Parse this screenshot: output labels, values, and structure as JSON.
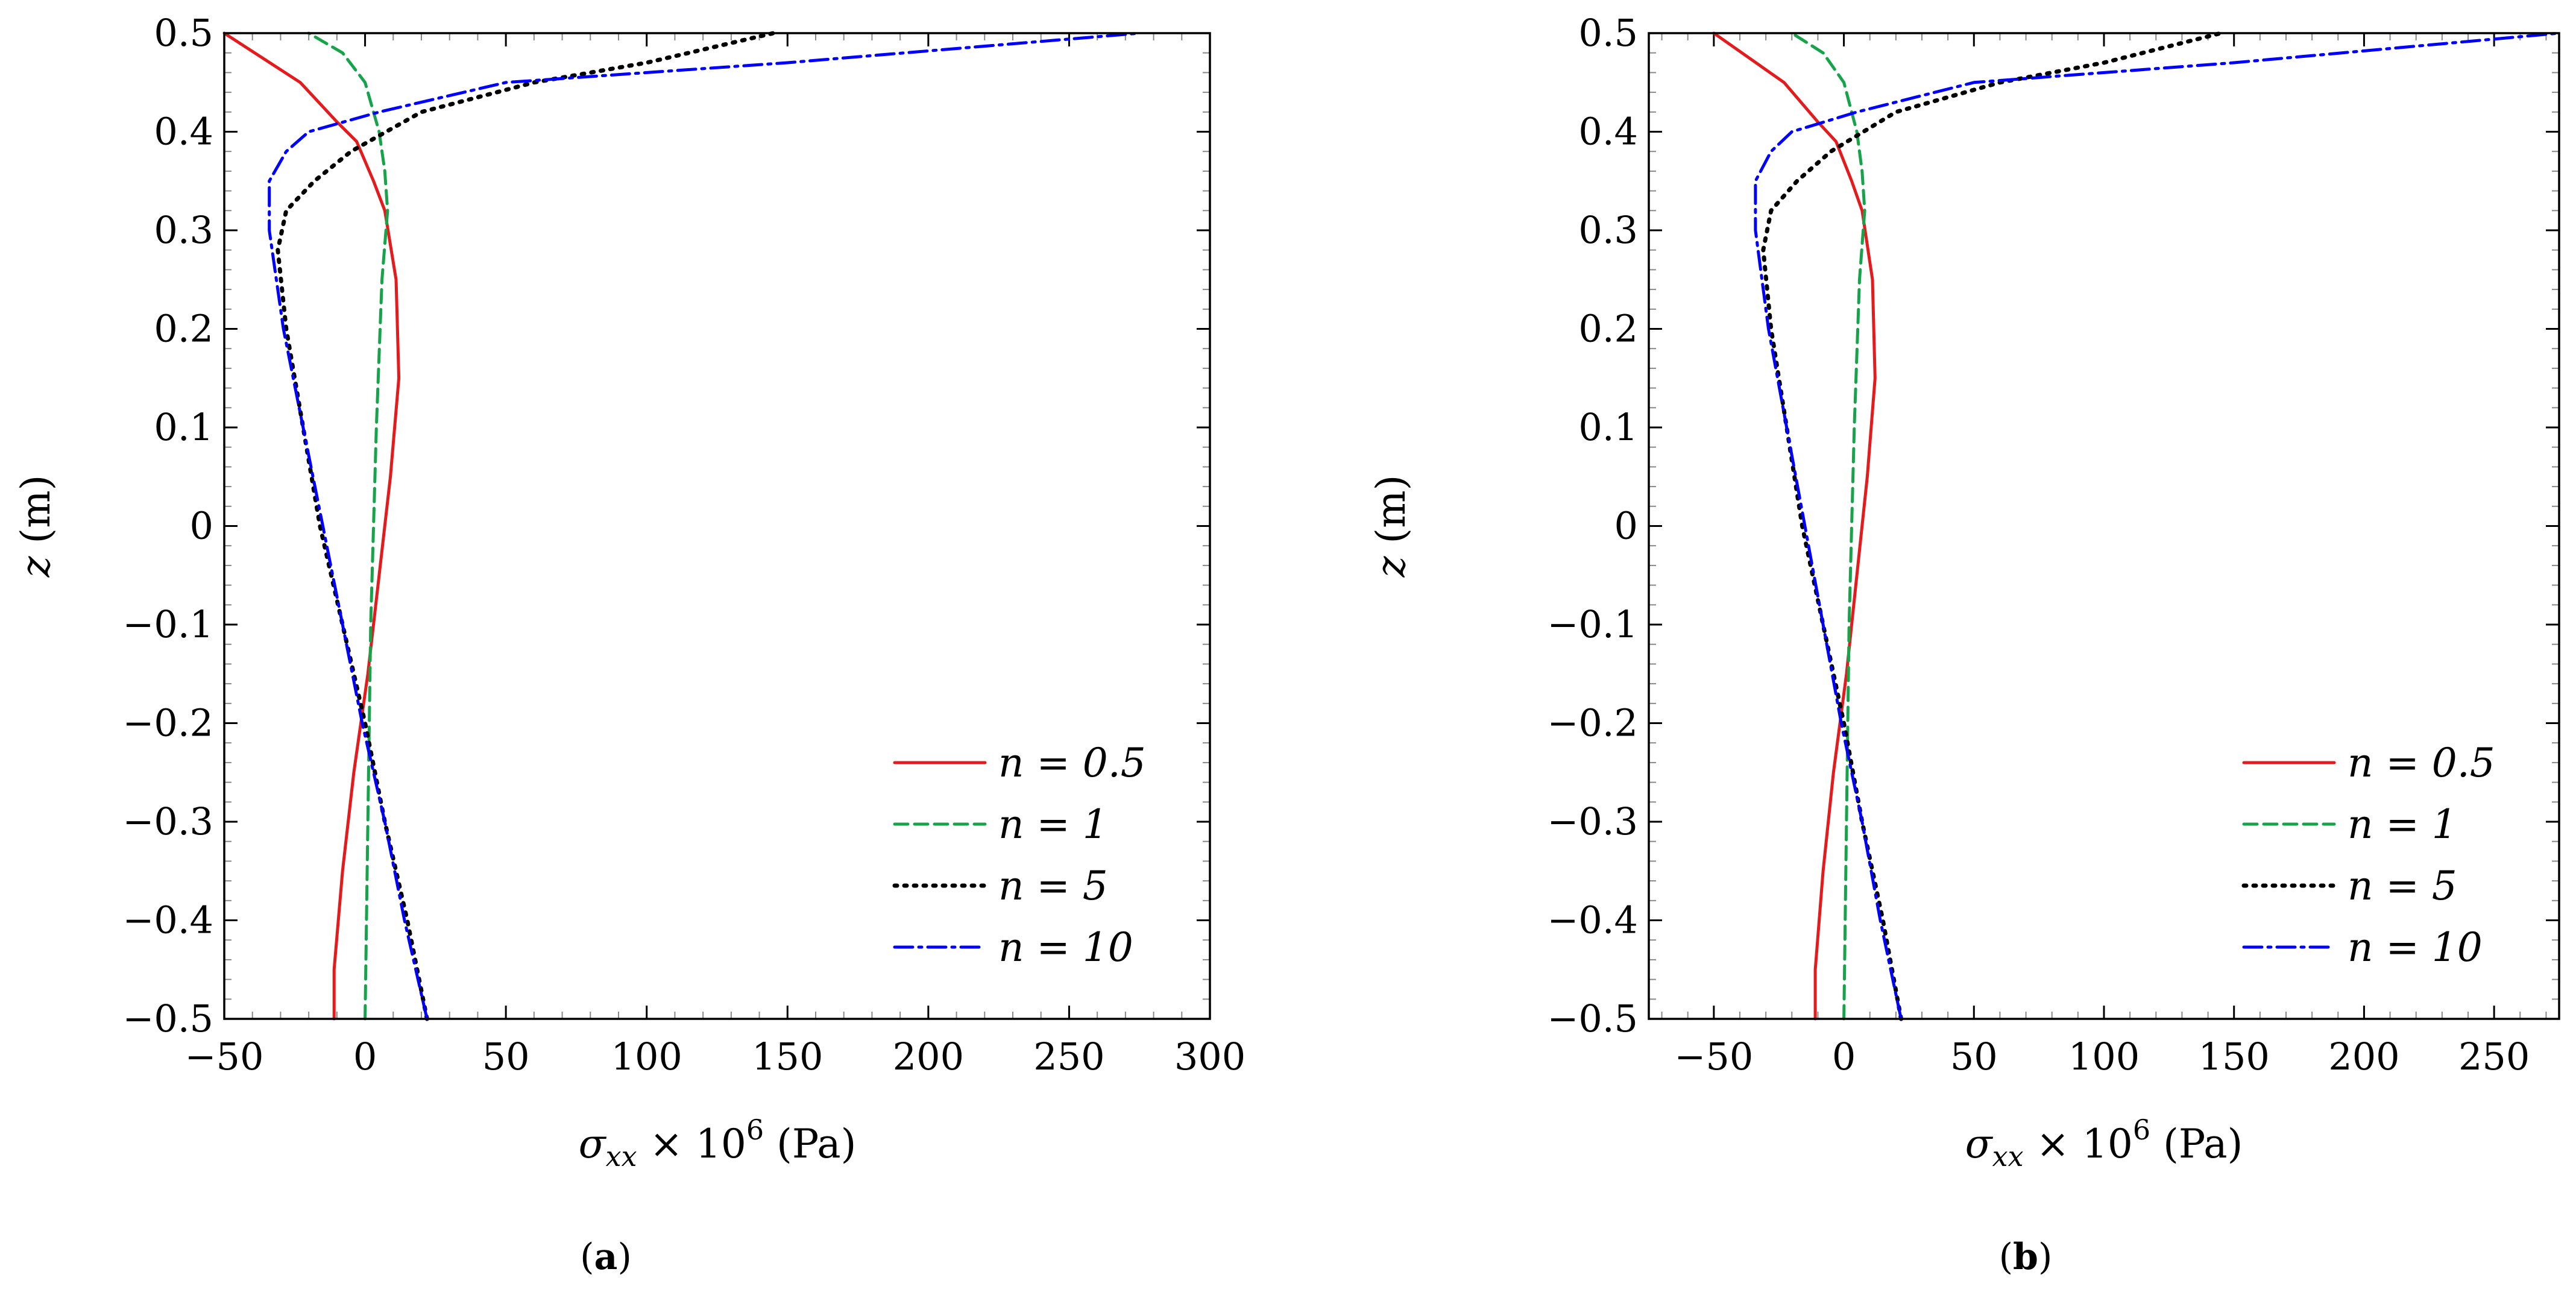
{
  "chart_data": [
    {
      "id": "a",
      "type": "line",
      "caption": "(a)",
      "xlabel": "σxx × 10^6 (Pa)",
      "ylabel": "z (m)",
      "xlim": [
        -50,
        300
      ],
      "ylim": [
        -0.5,
        0.5
      ],
      "xticks": [
        -50,
        0,
        50,
        100,
        150,
        200,
        250,
        300
      ],
      "xtick_labels": [
        "−50",
        "0",
        "50",
        "100",
        "150",
        "200",
        "250",
        "300"
      ],
      "yticks": [
        -0.5,
        -0.4,
        -0.3,
        -0.2,
        -0.1,
        0,
        0.1,
        0.2,
        0.3,
        0.4,
        0.5
      ],
      "ytick_labels": [
        "−0.5",
        "−0.4",
        "−0.3",
        "−0.2",
        "−0.1",
        "0",
        "0.1",
        "0.2",
        "0.3",
        "0.4",
        "0.5"
      ],
      "legend_position": "bottom-right",
      "series": [
        {
          "name": "n = 0.5",
          "color": "#e41a1c",
          "style": "solid",
          "points": [
            [
              -11,
              -0.5
            ],
            [
              -11,
              -0.45
            ],
            [
              -8,
              -0.35
            ],
            [
              -4,
              -0.25
            ],
            [
              1,
              -0.15
            ],
            [
              5,
              -0.05
            ],
            [
              9,
              0.05
            ],
            [
              12,
              0.15
            ],
            [
              11,
              0.25
            ],
            [
              7,
              0.32
            ],
            [
              3,
              0.35
            ],
            [
              -3,
              0.39
            ],
            [
              -10,
              0.41
            ],
            [
              -23,
              0.45
            ],
            [
              -50,
              0.5
            ]
          ]
        },
        {
          "name": "n = 1",
          "color": "#16a34a",
          "style": "dashed",
          "points": [
            [
              0,
              -0.5
            ],
            [
              1,
              -0.3
            ],
            [
              2,
              -0.1
            ],
            [
              4,
              0.1
            ],
            [
              6,
              0.25
            ],
            [
              8,
              0.32
            ],
            [
              7,
              0.36
            ],
            [
              5,
              0.4
            ],
            [
              0,
              0.45
            ],
            [
              -8,
              0.48
            ],
            [
              -20,
              0.5
            ]
          ]
        },
        {
          "name": "n = 5",
          "color": "#000000",
          "style": "dotted",
          "points": [
            [
              22,
              -0.5
            ],
            [
              15,
              -0.4
            ],
            [
              7,
              -0.3
            ],
            [
              0,
              -0.2
            ],
            [
              -8,
              -0.1
            ],
            [
              -16,
              0
            ],
            [
              -22,
              0.1
            ],
            [
              -28,
              0.2
            ],
            [
              -31,
              0.28
            ],
            [
              -28,
              0.32
            ],
            [
              -18,
              0.35
            ],
            [
              -5,
              0.38
            ],
            [
              20,
              0.42
            ],
            [
              60,
              0.45
            ],
            [
              100,
              0.47
            ],
            [
              145,
              0.5
            ]
          ]
        },
        {
          "name": "n = 10",
          "color": "#0000ff",
          "style": "dashdot",
          "points": [
            [
              22,
              -0.5
            ],
            [
              14,
              -0.4
            ],
            [
              7,
              -0.3
            ],
            [
              -1,
              -0.2
            ],
            [
              -8,
              -0.1
            ],
            [
              -15,
              0
            ],
            [
              -22,
              0.1
            ],
            [
              -29,
              0.2
            ],
            [
              -34,
              0.3
            ],
            [
              -34,
              0.35
            ],
            [
              -28,
              0.38
            ],
            [
              -20,
              0.4
            ],
            [
              5,
              0.42
            ],
            [
              50,
              0.45
            ],
            [
              150,
              0.47
            ],
            [
              275,
              0.5
            ]
          ]
        }
      ]
    },
    {
      "id": "b",
      "type": "line",
      "caption": "(b)",
      "xlabel": "σxx × 10^6 (Pa)",
      "ylabel": "z (m)",
      "xlim": [
        -75,
        275
      ],
      "ylim": [
        -0.5,
        0.5
      ],
      "xticks": [
        -50,
        0,
        50,
        100,
        150,
        200,
        250
      ],
      "xtick_labels": [
        "−50",
        "0",
        "50",
        "100",
        "150",
        "200",
        "250"
      ],
      "yticks": [
        -0.5,
        -0.4,
        -0.3,
        -0.2,
        -0.1,
        0,
        0.1,
        0.2,
        0.3,
        0.4,
        0.5
      ],
      "ytick_labels": [
        "−0.5",
        "−0.4",
        "−0.3",
        "−0.2",
        "−0.1",
        "0",
        "0.1",
        "0.2",
        "0.3",
        "0.4",
        "0.5"
      ],
      "legend_position": "bottom-right",
      "series": [
        {
          "name": "n = 0.5",
          "color": "#e41a1c",
          "style": "solid",
          "points": [
            [
              -11,
              -0.5
            ],
            [
              -11,
              -0.45
            ],
            [
              -8,
              -0.35
            ],
            [
              -4,
              -0.25
            ],
            [
              1,
              -0.15
            ],
            [
              5,
              -0.05
            ],
            [
              9,
              0.05
            ],
            [
              12,
              0.15
            ],
            [
              11,
              0.25
            ],
            [
              7,
              0.32
            ],
            [
              3,
              0.35
            ],
            [
              -3,
              0.39
            ],
            [
              -10,
              0.41
            ],
            [
              -23,
              0.45
            ],
            [
              -50,
              0.5
            ]
          ]
        },
        {
          "name": "n = 1",
          "color": "#16a34a",
          "style": "dashed",
          "points": [
            [
              0,
              -0.5
            ],
            [
              1,
              -0.3
            ],
            [
              2,
              -0.1
            ],
            [
              4,
              0.1
            ],
            [
              6,
              0.25
            ],
            [
              8,
              0.32
            ],
            [
              7,
              0.36
            ],
            [
              5,
              0.4
            ],
            [
              0,
              0.45
            ],
            [
              -8,
              0.48
            ],
            [
              -20,
              0.5
            ]
          ]
        },
        {
          "name": "n = 5",
          "color": "#000000",
          "style": "dotted",
          "points": [
            [
              22,
              -0.5
            ],
            [
              15,
              -0.4
            ],
            [
              7,
              -0.3
            ],
            [
              0,
              -0.2
            ],
            [
              -8,
              -0.1
            ],
            [
              -16,
              0
            ],
            [
              -22,
              0.1
            ],
            [
              -28,
              0.2
            ],
            [
              -31,
              0.28
            ],
            [
              -28,
              0.32
            ],
            [
              -18,
              0.35
            ],
            [
              -5,
              0.38
            ],
            [
              20,
              0.42
            ],
            [
              60,
              0.45
            ],
            [
              100,
              0.47
            ],
            [
              145,
              0.5
            ]
          ]
        },
        {
          "name": "n = 10",
          "color": "#0000ff",
          "style": "dashdot",
          "points": [
            [
              22,
              -0.5
            ],
            [
              14,
              -0.4
            ],
            [
              7,
              -0.3
            ],
            [
              -1,
              -0.2
            ],
            [
              -8,
              -0.1
            ],
            [
              -15,
              0
            ],
            [
              -22,
              0.1
            ],
            [
              -29,
              0.2
            ],
            [
              -34,
              0.3
            ],
            [
              -34,
              0.35
            ],
            [
              -28,
              0.38
            ],
            [
              -20,
              0.4
            ],
            [
              5,
              0.42
            ],
            [
              50,
              0.45
            ],
            [
              150,
              0.47
            ],
            [
              275,
              0.5
            ]
          ]
        }
      ]
    }
  ]
}
